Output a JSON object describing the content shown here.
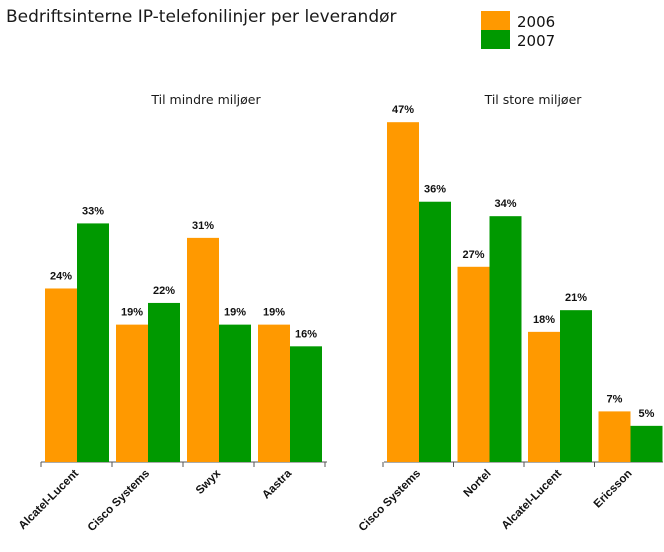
{
  "chart_data": {
    "title": "Bedriftsinterne IP-telefonilinjer per leverandør",
    "legend": {
      "placement": "top-right",
      "entries": [
        {
          "name": "2006",
          "color": "#FF9900"
        },
        {
          "name": "2007",
          "color": "#009900"
        }
      ]
    },
    "panels": [
      {
        "type": "bar",
        "title": "Til mindre miljøer",
        "categories": [
          "Alcatel-Lucent",
          "Cisco Systems",
          "Swyx",
          "Aastra"
        ],
        "series": [
          {
            "name": "2006",
            "values": [
              24,
              19,
              31,
              19
            ],
            "labels": [
              "24%",
              "19%",
              "31%",
              "19%"
            ]
          },
          {
            "name": "2007",
            "values": [
              33,
              22,
              19,
              16
            ],
            "labels": [
              "33%",
              "22%",
              "19%",
              "16%"
            ]
          }
        ],
        "ylim": [
          0,
          48
        ],
        "grid": false
      },
      {
        "type": "bar",
        "title": "Til store miljøer",
        "categories": [
          "Cisco Systems",
          "Nortel",
          "Alcatel-Lucent",
          "Ericsson"
        ],
        "series": [
          {
            "name": "2006",
            "values": [
              47,
              27,
              18,
              7
            ],
            "labels": [
              "47%",
              "27%",
              "18%",
              "7%"
            ]
          },
          {
            "name": "2007",
            "values": [
              36,
              34,
              21,
              5
            ],
            "labels": [
              "36%",
              "34%",
              "21%",
              "5%"
            ]
          }
        ],
        "ylim": [
          0,
          48
        ],
        "grid": false
      }
    ]
  }
}
